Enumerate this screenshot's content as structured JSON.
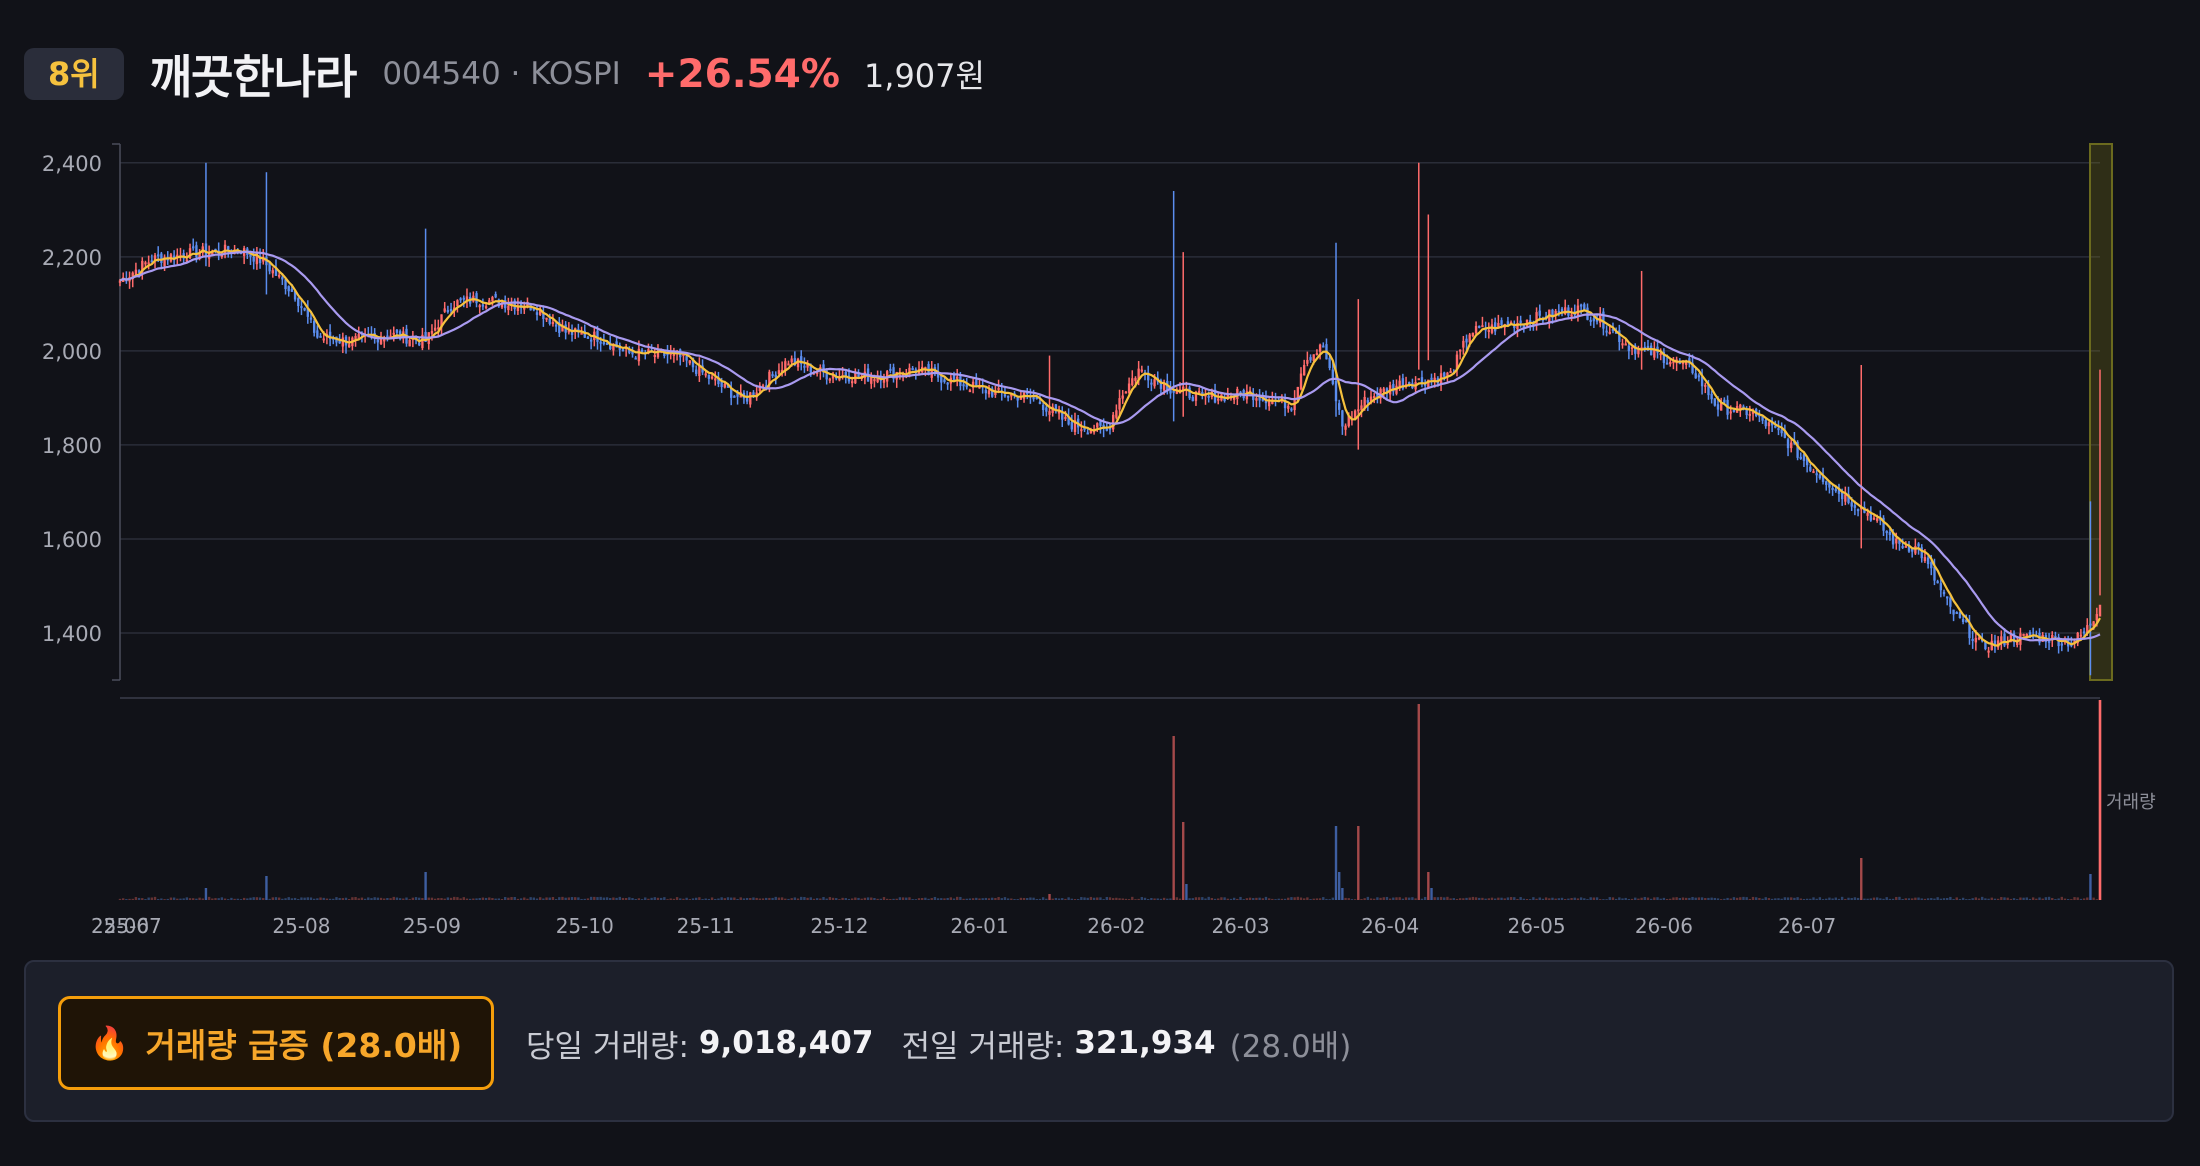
{
  "header": {
    "rank": "8위",
    "name": "깨끗한나라",
    "code_market": "004540 · KOSPI",
    "change": "+26.54%",
    "price": "1,907원"
  },
  "colors": {
    "up": "#ff6b6b",
    "down": "#5b8def",
    "ma_short": "#f5c13d",
    "ma_long": "#a99af0",
    "highlight": "#6b6a1e",
    "grid": "#2a2d38",
    "alert": "#f59e0b"
  },
  "chart_data": {
    "type": "candlestick",
    "y_ticks": [
      "2,400",
      "2,200",
      "2,000",
      "1,800",
      "1,600",
      "1,400"
    ],
    "y_tick_values": [
      2400,
      2200,
      2000,
      1800,
      1600,
      1400
    ],
    "ylim": [
      1300,
      2440
    ],
    "x_ticks": [
      "25-06",
      "25-07",
      "25-08",
      "25-09",
      "25-10",
      "25-11",
      "25-12",
      "26-01",
      "26-02",
      "26-03",
      "26-04",
      "26-05",
      "26-06",
      "26-07"
    ],
    "x_tick_index": [
      0,
      4,
      57,
      98,
      146,
      184,
      226,
      270,
      313,
      352,
      399,
      445,
      485,
      530
    ],
    "volume_label": "거래량",
    "price_path": [
      [
        0,
        2150
      ],
      [
        10,
        2195
      ],
      [
        25,
        2210
      ],
      [
        38,
        2215
      ],
      [
        45,
        2190
      ],
      [
        55,
        2120
      ],
      [
        62,
        2030
      ],
      [
        72,
        2020
      ],
      [
        85,
        2035
      ],
      [
        96,
        2020
      ],
      [
        104,
        2100
      ],
      [
        112,
        2110
      ],
      [
        130,
        2095
      ],
      [
        140,
        2040
      ],
      [
        150,
        2030
      ],
      [
        160,
        1995
      ],
      [
        175,
        1990
      ],
      [
        190,
        1920
      ],
      [
        196,
        1895
      ],
      [
        210,
        1980
      ],
      [
        222,
        1950
      ],
      [
        235,
        1945
      ],
      [
        250,
        1960
      ],
      [
        262,
        1935
      ],
      [
        275,
        1910
      ],
      [
        287,
        1900
      ],
      [
        298,
        1845
      ],
      [
        310,
        1830
      ],
      [
        314,
        1900
      ],
      [
        320,
        1960
      ],
      [
        330,
        1920
      ],
      [
        340,
        1900
      ],
      [
        355,
        1910
      ],
      [
        368,
        1885
      ],
      [
        372,
        1980
      ],
      [
        378,
        2010
      ],
      [
        384,
        1840
      ],
      [
        392,
        1900
      ],
      [
        402,
        1930
      ],
      [
        412,
        1940
      ],
      [
        418,
        1950
      ],
      [
        424,
        2040
      ],
      [
        432,
        2050
      ],
      [
        445,
        2070
      ],
      [
        458,
        2090
      ],
      [
        466,
        2060
      ],
      [
        474,
        2010
      ],
      [
        484,
        1990
      ],
      [
        494,
        1960
      ],
      [
        502,
        1880
      ],
      [
        512,
        1870
      ],
      [
        522,
        1820
      ],
      [
        530,
        1760
      ],
      [
        540,
        1700
      ],
      [
        550,
        1650
      ],
      [
        558,
        1590
      ],
      [
        565,
        1580
      ],
      [
        575,
        1450
      ],
      [
        585,
        1370
      ],
      [
        595,
        1390
      ],
      [
        605,
        1390
      ],
      [
        613,
        1380
      ],
      [
        617,
        1400
      ],
      [
        620,
        1430
      ],
      [
        622,
        1470
      ]
    ],
    "spikes": [
      {
        "index": 27,
        "high": 2400,
        "low": 2180
      },
      {
        "index": 46,
        "high": 2380,
        "low": 2120
      },
      {
        "index": 96,
        "high": 2260,
        "low": 2020
      },
      {
        "index": 292,
        "high": 1990,
        "low": 1850
      },
      {
        "index": 331,
        "high": 2340,
        "low": 1850
      },
      {
        "index": 334,
        "high": 2210,
        "low": 1860
      },
      {
        "index": 382,
        "high": 2230,
        "low": 1860
      },
      {
        "index": 389,
        "high": 2110,
        "low": 1790
      },
      {
        "index": 408,
        "high": 2400,
        "low": 1960
      },
      {
        "index": 411,
        "high": 2290,
        "low": 1980
      },
      {
        "index": 478,
        "high": 2170,
        "low": 1960
      },
      {
        "index": 547,
        "high": 1970,
        "low": 1580
      },
      {
        "index": 619,
        "high": 1680,
        "low": 1310
      },
      {
        "index": 622,
        "high": 1960,
        "low": 1480
      }
    ],
    "volume_spikes": [
      {
        "index": 27,
        "value": 0.06
      },
      {
        "index": 46,
        "value": 0.12
      },
      {
        "index": 96,
        "value": 0.14
      },
      {
        "index": 292,
        "value": 0.03
      },
      {
        "index": 331,
        "value": 0.82
      },
      {
        "index": 334,
        "value": 0.39
      },
      {
        "index": 335,
        "value": 0.08
      },
      {
        "index": 382,
        "value": 0.37
      },
      {
        "index": 383,
        "value": 0.14
      },
      {
        "index": 384,
        "value": 0.06
      },
      {
        "index": 389,
        "value": 0.37
      },
      {
        "index": 408,
        "value": 0.98
      },
      {
        "index": 411,
        "value": 0.14
      },
      {
        "index": 412,
        "value": 0.06
      },
      {
        "index": 547,
        "value": 0.21
      },
      {
        "index": 619,
        "value": 0.13
      },
      {
        "index": 622,
        "value": 1.0
      }
    ],
    "count": 623
  },
  "alert": {
    "icon": "fire-icon",
    "badge": "거래량 급증 (28.0배)",
    "today_label": "당일 거래량:",
    "today_value": "9,018,407",
    "prev_label": "전일 거래량:",
    "prev_value": "321,934",
    "ratio": "(28.0배)"
  }
}
